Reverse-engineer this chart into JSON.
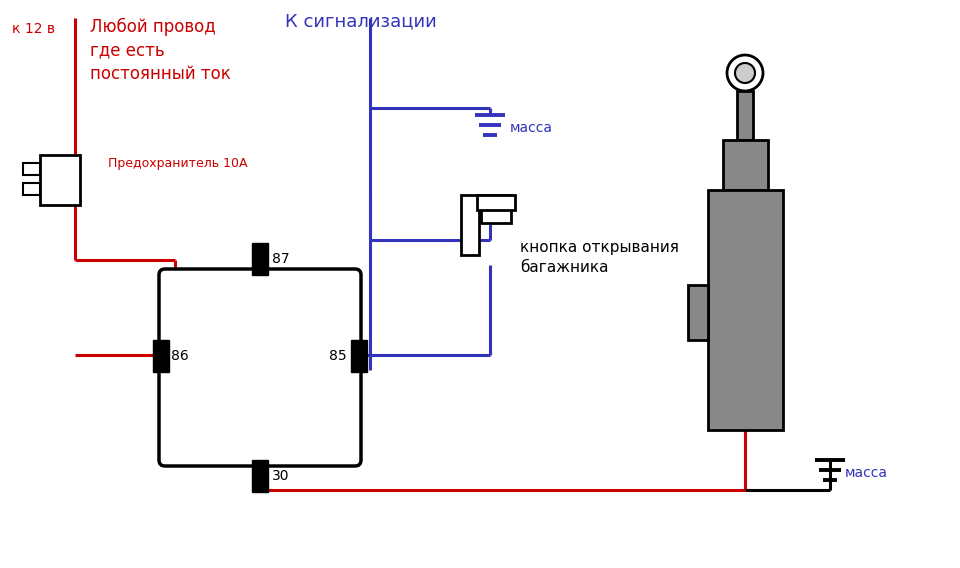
{
  "bg_color": "#ffffff",
  "red": "#cc0000",
  "blue": "#3333bb",
  "black": "#000000",
  "gray": "#888888",
  "labels": {
    "k12v": "к 12 в",
    "any_wire": "Любой провод\nгде есть\nпостоянный ток",
    "fuse": "Предохранитель 10А",
    "alarm": "К сигнализации",
    "massa_top": "масса",
    "button_label": "кнопка открывания\nбагажника",
    "massa_bottom": "масса",
    "pin87": "87",
    "pin86": "86",
    "pin85": "85",
    "pin30": "30"
  }
}
